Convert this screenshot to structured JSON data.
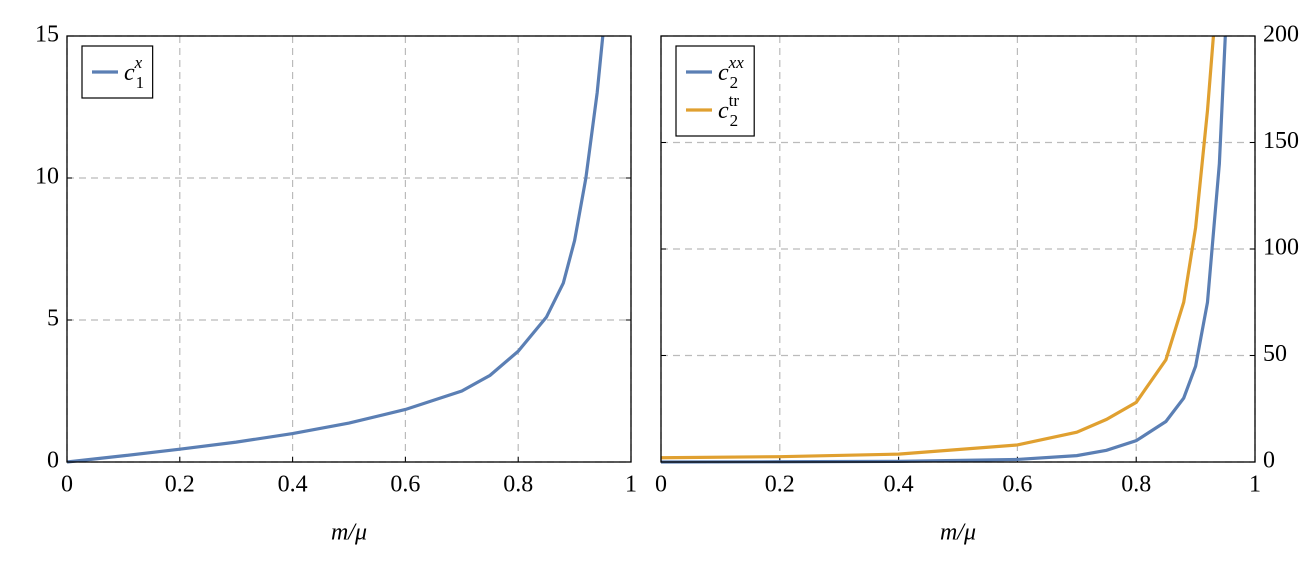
{
  "chart_data": [
    {
      "type": "line",
      "xlabel": "m/μ",
      "xlim": [
        0,
        1
      ],
      "xticks": [
        0,
        0.2,
        0.4,
        0.6,
        0.8,
        1
      ],
      "ylim": [
        0,
        15
      ],
      "yticks": [
        0,
        5,
        10,
        15
      ],
      "y_axis_side": "left",
      "grid": true,
      "legend": "upper left",
      "series": [
        {
          "name": "c",
          "name_sub": "1",
          "name_sup": "x",
          "color": "#5b7fb4",
          "x": [
            0,
            0.1,
            0.2,
            0.3,
            0.4,
            0.5,
            0.6,
            0.7,
            0.75,
            0.8,
            0.85,
            0.88,
            0.9,
            0.92,
            0.94,
            0.95
          ],
          "values": [
            0,
            0.22,
            0.45,
            0.7,
            1.0,
            1.37,
            1.85,
            2.5,
            3.05,
            3.9,
            5.1,
            6.3,
            7.8,
            10,
            13,
            15
          ]
        }
      ]
    },
    {
      "type": "line",
      "xlabel": "m/μ",
      "xlim": [
        0,
        1
      ],
      "xticks": [
        0,
        0.2,
        0.4,
        0.6,
        0.8,
        1
      ],
      "ylim": [
        0,
        200
      ],
      "yticks": [
        0,
        50,
        100,
        150,
        200
      ],
      "y_axis_side": "right",
      "grid": true,
      "legend": "upper left",
      "series": [
        {
          "name": "c",
          "name_sub": "2",
          "name_sup": "xx",
          "color": "#5b7fb4",
          "x": [
            0,
            0.2,
            0.4,
            0.6,
            0.7,
            0.75,
            0.8,
            0.85,
            0.88,
            0.9,
            0.92,
            0.94,
            0.95
          ],
          "values": [
            0,
            0.1,
            0.3,
            1.2,
            3,
            5.5,
            10,
            19,
            30,
            45,
            75,
            140,
            200
          ]
        },
        {
          "name": "c",
          "name_sub": "2",
          "name_sup": "tr",
          "color": "#e0a030",
          "x": [
            0,
            0.2,
            0.4,
            0.6,
            0.7,
            0.75,
            0.8,
            0.85,
            0.88,
            0.9,
            0.92,
            0.93
          ],
          "values": [
            2,
            2.5,
            3.7,
            8,
            14,
            20,
            28,
            48,
            75,
            110,
            165,
            200
          ]
        }
      ]
    }
  ]
}
